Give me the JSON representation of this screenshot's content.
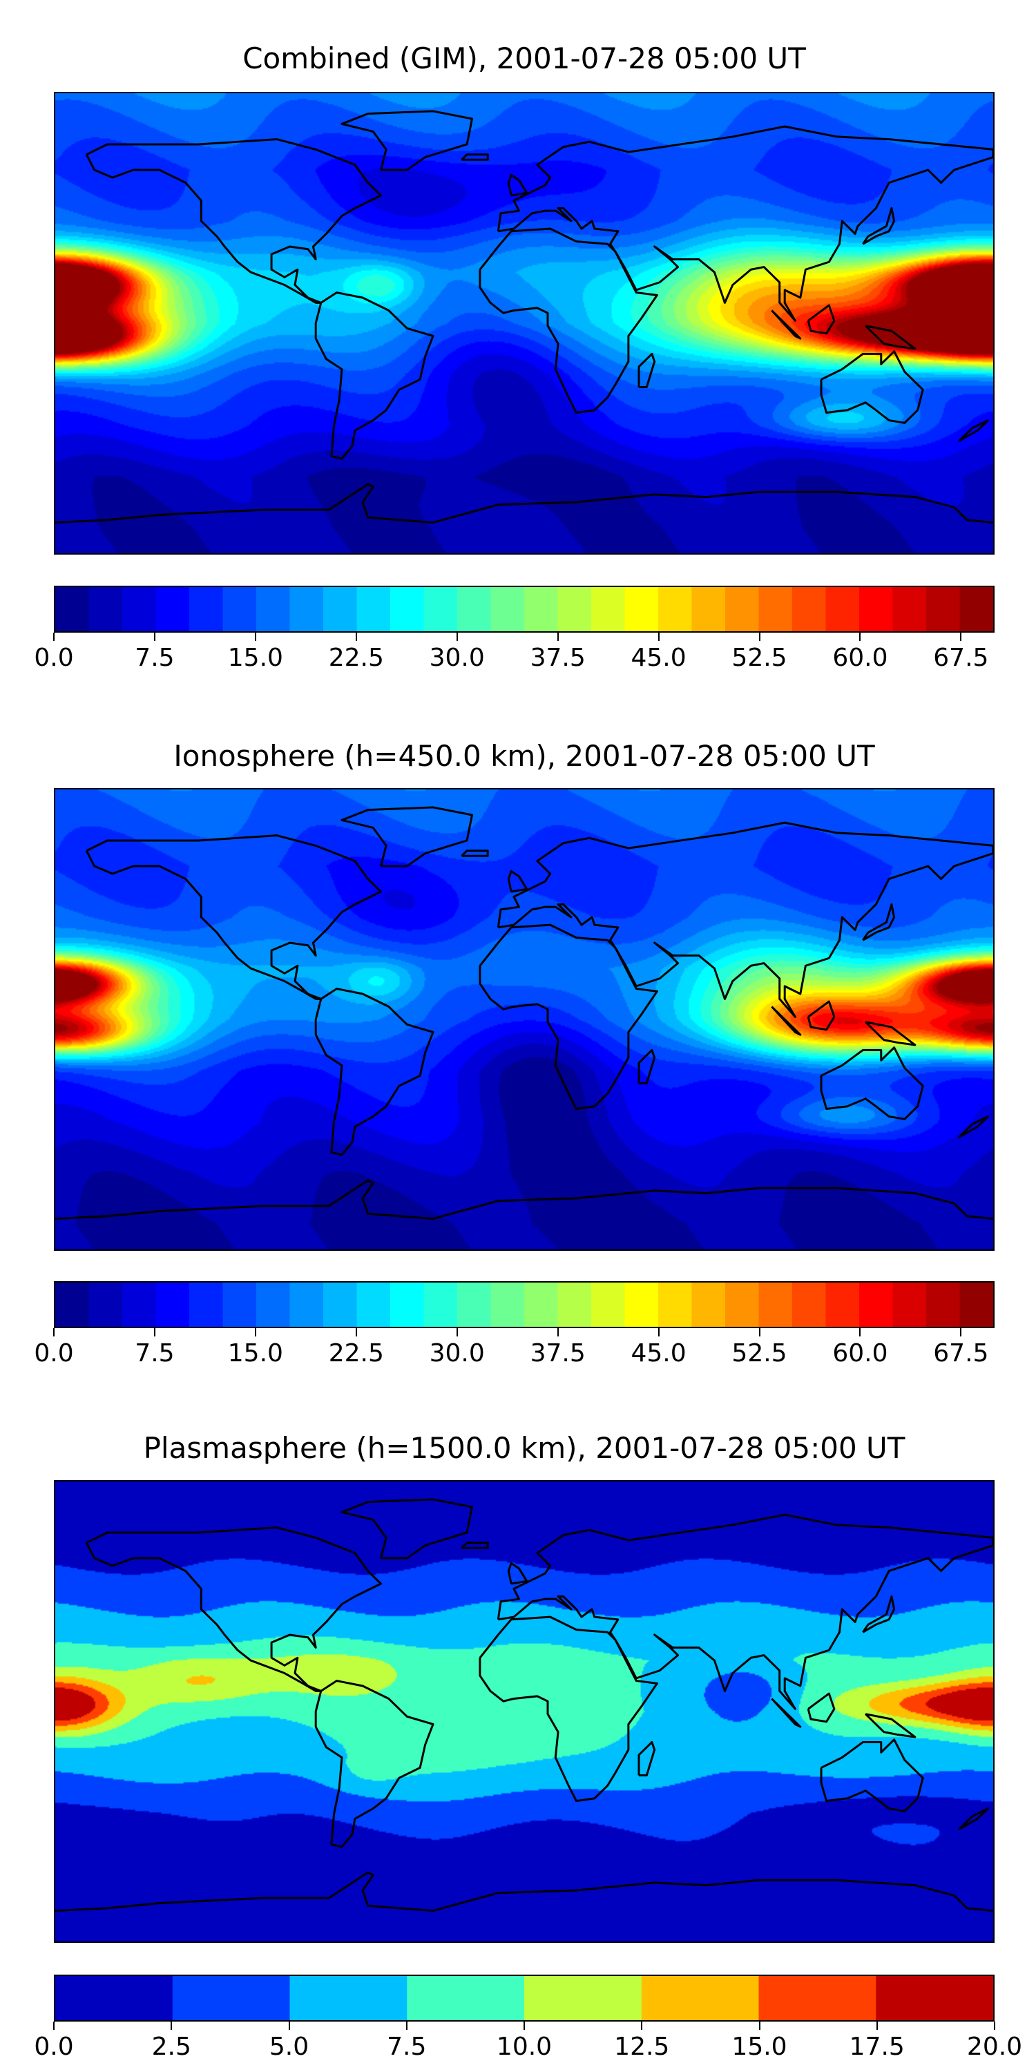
{
  "chart_data": [
    {
      "type": "heatmap",
      "title": "Combined (GIM), 2001-07-28 05:00 UT",
      "projection": "equirectangular",
      "lon_range": [
        -180,
        180
      ],
      "lat_range": [
        -90,
        90
      ],
      "colormap": "jet",
      "levels": {
        "min": 0,
        "max": 70,
        "step": 2.5
      },
      "colorbar_ticks": [
        "0.0",
        "7.5",
        "15.0",
        "22.5",
        "30.0",
        "37.5",
        "45.0",
        "52.5",
        "60.0",
        "67.5"
      ],
      "base_profile": [
        [
          90,
          17
        ],
        [
          60,
          12
        ],
        [
          40,
          14
        ],
        [
          20,
          20
        ],
        [
          0,
          20
        ],
        [
          -20,
          14
        ],
        [
          -40,
          10
        ],
        [
          -60,
          4
        ],
        [
          -80,
          3
        ],
        [
          -90,
          3
        ]
      ],
      "features": [
        {
          "lon": -178,
          "lat": -6,
          "slon": 22,
          "slat": 7,
          "amp": 48
        },
        {
          "lon": -178,
          "lat": 16,
          "slon": 20,
          "slat": 7,
          "amp": 35
        },
        {
          "lon": -150,
          "lat": 5,
          "slon": 30,
          "slat": 15,
          "amp": 15
        },
        {
          "lon": 170,
          "lat": 15,
          "slon": 25,
          "slat": 8,
          "amp": 42
        },
        {
          "lon": 150,
          "lat": -4,
          "slon": 30,
          "slat": 7,
          "amp": 45
        },
        {
          "lon": 110,
          "lat": 8,
          "slon": 35,
          "slat": 15,
          "amp": 22
        },
        {
          "lon": 75,
          "lat": 5,
          "slon": 25,
          "slat": 15,
          "amp": 12
        },
        {
          "lon": -55,
          "lat": 15,
          "slon": 10,
          "slat": 6,
          "amp": 10
        },
        {
          "lon": 120,
          "lat": -38,
          "slon": 20,
          "slat": 6,
          "amp": 12
        },
        {
          "lon": -30,
          "lat": 50,
          "slon": 30,
          "slat": 12,
          "amp": -7
        },
        {
          "lon": -10,
          "lat": -20,
          "slon": 25,
          "slat": 20,
          "amp": -8
        },
        {
          "lon": -20,
          "lat": -60,
          "slon": 40,
          "slat": 8,
          "amp": -2
        }
      ]
    },
    {
      "type": "heatmap",
      "title": "Ionosphere  (h=450.0 km), 2001-07-28 05:00 UT",
      "projection": "equirectangular",
      "lon_range": [
        -180,
        180
      ],
      "lat_range": [
        -90,
        90
      ],
      "colormap": "jet",
      "levels": {
        "min": 0,
        "max": 70,
        "step": 2.5
      },
      "colorbar_ticks": [
        "0.0",
        "7.5",
        "15.0",
        "22.5",
        "30.0",
        "37.5",
        "45.0",
        "52.5",
        "60.0",
        "67.5"
      ],
      "base_profile": [
        [
          90,
          16
        ],
        [
          60,
          12
        ],
        [
          40,
          14
        ],
        [
          20,
          18
        ],
        [
          0,
          16
        ],
        [
          -20,
          10
        ],
        [
          -40,
          8
        ],
        [
          -60,
          4
        ],
        [
          -80,
          2
        ],
        [
          -90,
          2
        ]
      ],
      "features": [
        {
          "lon": -178,
          "lat": -5,
          "slon": 20,
          "slat": 6,
          "amp": 38
        },
        {
          "lon": -178,
          "lat": 15,
          "slon": 18,
          "slat": 6,
          "amp": 30
        },
        {
          "lon": -150,
          "lat": 5,
          "slon": 30,
          "slat": 15,
          "amp": 12
        },
        {
          "lon": 170,
          "lat": 13,
          "slon": 22,
          "slat": 7,
          "amp": 35
        },
        {
          "lon": 130,
          "lat": -2,
          "slon": 30,
          "slat": 8,
          "amp": 35
        },
        {
          "lon": 100,
          "lat": 8,
          "slon": 30,
          "slat": 15,
          "amp": 18
        },
        {
          "lon": -55,
          "lat": 15,
          "slon": 10,
          "slat": 6,
          "amp": 8
        },
        {
          "lon": 10,
          "lat": -20,
          "slon": 20,
          "slat": 25,
          "amp": -9
        },
        {
          "lon": 120,
          "lat": -38,
          "slon": 20,
          "slat": 6,
          "amp": 10
        },
        {
          "lon": -40,
          "lat": 45,
          "slon": 25,
          "slat": 12,
          "amp": -5
        }
      ]
    },
    {
      "type": "heatmap",
      "title": "Plasmasphere (h=1500.0 km), 2001-07-28 05:00 UT",
      "projection": "equirectangular",
      "lon_range": [
        -180,
        180
      ],
      "lat_range": [
        -90,
        90
      ],
      "colormap": "jet",
      "levels": {
        "min": 0,
        "max": 20,
        "step": 2.5
      },
      "colorbar_ticks": [
        "0.0",
        "2.5",
        "5.0",
        "7.5",
        "10.0",
        "12.5",
        "15.0",
        "17.5",
        "20.0"
      ],
      "base_profile": [
        [
          90,
          1.5
        ],
        [
          60,
          2
        ],
        [
          40,
          5
        ],
        [
          20,
          8
        ],
        [
          0,
          7.5
        ],
        [
          -20,
          6
        ],
        [
          -40,
          3
        ],
        [
          -60,
          1.5
        ],
        [
          -80,
          1.5
        ],
        [
          -90,
          1.5
        ]
      ],
      "features": [
        {
          "lon": -178,
          "lat": 2,
          "slon": 15,
          "slat": 8,
          "amp": 9
        },
        {
          "lon": -125,
          "lat": 12,
          "slon": 18,
          "slat": 7,
          "amp": 5
        },
        {
          "lon": -70,
          "lat": 15,
          "slon": 25,
          "slat": 8,
          "amp": 3
        },
        {
          "lon": 160,
          "lat": 3,
          "slon": 25,
          "slat": 6,
          "amp": 9
        },
        {
          "lon": 85,
          "lat": 8,
          "slon": 15,
          "slat": 10,
          "amp": -4
        },
        {
          "lon": -20,
          "lat": -15,
          "slon": 30,
          "slat": 15,
          "amp": 2.5
        },
        {
          "lon": -60,
          "lat": -25,
          "slon": 10,
          "slat": 5,
          "amp": 1.5
        },
        {
          "lon": 140,
          "lat": -35,
          "slon": 25,
          "slat": 6,
          "amp": -2
        },
        {
          "lon": -140,
          "lat": -45,
          "slon": 25,
          "slat": 10,
          "amp": -1
        },
        {
          "lon": 0,
          "lat": -50,
          "slon": 40,
          "slat": 5,
          "amp": -0.5
        }
      ]
    }
  ]
}
